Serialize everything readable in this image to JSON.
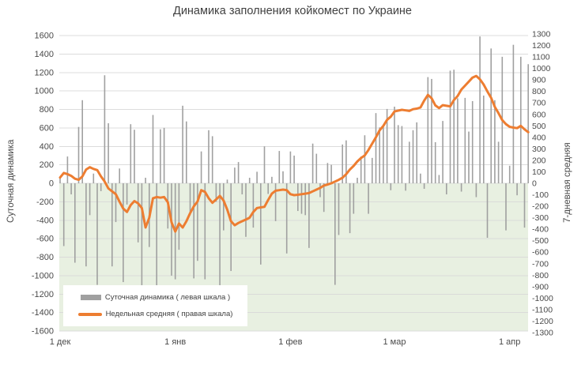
{
  "title": "Динамика заполнения койкомест по Украине",
  "left_axis": {
    "title": "Суточная динамика",
    "ticks": [
      1600,
      1400,
      1200,
      1000,
      800,
      600,
      400,
      200,
      0,
      -200,
      -400,
      -600,
      -800,
      -1000,
      -1200,
      -1400,
      -1600
    ]
  },
  "right_axis": {
    "title": "7-дневная средняя",
    "ticks": [
      1300,
      1200,
      1100,
      1000,
      900,
      800,
      700,
      600,
      500,
      400,
      300,
      200,
      100,
      0,
      -100,
      -200,
      -300,
      -400,
      -500,
      -600,
      -700,
      -800,
      -900,
      -1000,
      -1100,
      -1200,
      -1300
    ]
  },
  "legend": {
    "items": [
      {
        "label": "Суточная динамика ( левая шкала )",
        "swatch": "gray-bar"
      },
      {
        "label": "Недельная средняя ( правая шкала)",
        "swatch": "orange-line"
      }
    ]
  },
  "colors": {
    "bar": "#a0a0a0",
    "line": "#ed7d31",
    "negative_bg": "#e8f0e1",
    "gridline": "#d9d9d9",
    "tick_text": "#4a4a4a"
  },
  "chart_data": {
    "type": "bar",
    "title": "Динамика заполнения койкомест по Украине",
    "x_start_label": "1 дек",
    "month_labels": [
      {
        "label": "1 дек",
        "day": 0
      },
      {
        "label": "1 янв",
        "day": 31
      },
      {
        "label": "1 фев",
        "day": 62
      },
      {
        "label": "1 мар",
        "day": 90
      },
      {
        "label": "1 апр",
        "day": 121
      }
    ],
    "ylim_left": [
      -1600,
      1600
    ],
    "ylim_right": [
      -1300,
      1300
    ],
    "series": [
      {
        "name": "Суточная динамика ( левая шкала )",
        "axis": "left",
        "type": "bar",
        "values": [
          60,
          -680,
          290,
          -120,
          -860,
          610,
          900,
          -900,
          -345,
          105,
          -1100,
          -85,
          1170,
          650,
          -900,
          -420,
          160,
          -1070,
          -230,
          640,
          580,
          -640,
          -1170,
          60,
          -690,
          740,
          -1120,
          585,
          600,
          -490,
          -1000,
          -1040,
          -720,
          840,
          670,
          -345,
          -1030,
          -840,
          345,
          -1040,
          575,
          510,
          -200,
          -1170,
          -510,
          40,
          -950,
          170,
          230,
          -120,
          -580,
          60,
          -480,
          125,
          -880,
          400,
          -115,
          70,
          -410,
          350,
          130,
          -760,
          345,
          300,
          -300,
          -330,
          -345,
          -700,
          430,
          320,
          -150,
          -310,
          220,
          200,
          -1100,
          -560,
          420,
          465,
          -540,
          -330,
          60,
          290,
          520,
          -330,
          275,
          760,
          605,
          630,
          805,
          -75,
          830,
          630,
          620,
          -80,
          450,
          575,
          660,
          105,
          -60,
          1150,
          1130,
          445,
          90,
          675,
          -120,
          1220,
          1230,
          920,
          -90,
          925,
          560,
          890,
          -150,
          1590,
          950,
          -590,
          1460,
          900,
          450,
          1370,
          -510,
          190,
          1500,
          -130,
          1370,
          -480,
          1290
        ]
      },
      {
        "name": "Недельная средняя ( правая шкала)",
        "axis": "right",
        "type": "line",
        "values": [
          50,
          90,
          80,
          65,
          40,
          30,
          60,
          120,
          140,
          125,
          115,
          60,
          15,
          -45,
          -70,
          -95,
          -160,
          -220,
          -250,
          -190,
          -155,
          -175,
          -215,
          -385,
          -300,
          -130,
          -120,
          -125,
          -120,
          -165,
          -340,
          -420,
          -350,
          -385,
          -330,
          -260,
          -200,
          -158,
          -60,
          -75,
          -130,
          -170,
          -140,
          -110,
          -150,
          -230,
          -330,
          -365,
          -345,
          -330,
          -316,
          -300,
          -250,
          -215,
          -210,
          -205,
          -145,
          -90,
          -65,
          -60,
          -55,
          -60,
          -95,
          -103,
          -100,
          -95,
          -90,
          -85,
          -70,
          -55,
          -40,
          -20,
          -10,
          0,
          15,
          30,
          48,
          80,
          120,
          151,
          190,
          220,
          243,
          290,
          346,
          400,
          461,
          500,
          552,
          580,
          625,
          633,
          640,
          635,
          630,
          645,
          650,
          660,
          720,
          770,
          740,
          678,
          655,
          680,
          675,
          670,
          725,
          760,
          816,
          850,
          885,
          920,
          935,
          905,
          860,
          800,
          745,
          666,
          610,
          550,
          515,
          492,
          485,
          480,
          500,
          470,
          445
        ]
      }
    ]
  }
}
